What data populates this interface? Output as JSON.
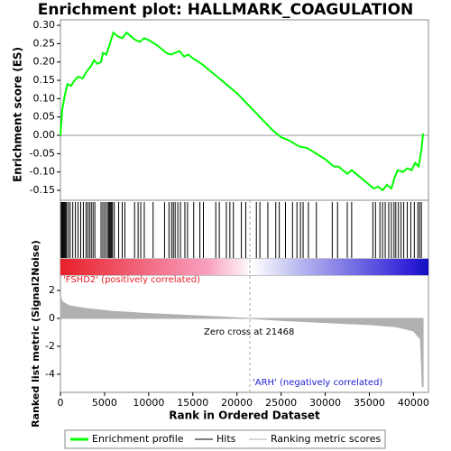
{
  "chart_data": [
    {
      "type": "line",
      "title": "Enrichment plot: HALLMARK_COAGULATION",
      "ylabel": "Enrichment score (ES)",
      "xlim": [
        0,
        41700
      ],
      "ylim": [
        -0.177,
        0.315
      ],
      "yticks": [
        {
          "value": 0.3,
          "label": "0.30"
        },
        {
          "value": 0.25,
          "label": "0.25"
        },
        {
          "value": 0.2,
          "label": "0.20"
        },
        {
          "value": 0.15,
          "label": "0.15"
        },
        {
          "value": 0.1,
          "label": "0.10"
        },
        {
          "value": 0.05,
          "label": "0.05"
        },
        {
          "value": 0,
          "label": "0.00"
        },
        {
          "value": -0.05,
          "label": "-0.05"
        },
        {
          "value": -0.1,
          "label": "-0.10"
        },
        {
          "value": -0.15,
          "label": "-0.15"
        }
      ],
      "x": [
        0,
        200,
        500,
        800,
        1200,
        1600,
        2000,
        2500,
        3000,
        3500,
        3800,
        4200,
        4600,
        4800,
        5200,
        5600,
        6000,
        6500,
        7000,
        7500,
        8000,
        8500,
        9000,
        9500,
        10000,
        11000,
        12000,
        12500,
        13000,
        13500,
        14000,
        14500,
        15000,
        16000,
        17000,
        18000,
        19000,
        20000,
        21000,
        22000,
        23000,
        24000,
        25000,
        26000,
        27000,
        28000,
        29000,
        30000,
        31000,
        31500,
        32500,
        33000,
        34000,
        35000,
        35500,
        36000,
        36500,
        37000,
        37500,
        37800,
        38200,
        38800,
        39300,
        39800,
        40200,
        40600,
        40900,
        41100
      ],
      "series": [
        {
          "name": "Enrichment profile",
          "color": "#00ff00",
          "values": [
            0,
            0.07,
            0.11,
            0.14,
            0.135,
            0.15,
            0.16,
            0.155,
            0.175,
            0.19,
            0.205,
            0.195,
            0.2,
            0.225,
            0.22,
            0.25,
            0.28,
            0.27,
            0.265,
            0.28,
            0.27,
            0.26,
            0.255,
            0.265,
            0.26,
            0.245,
            0.225,
            0.22,
            0.225,
            0.23,
            0.215,
            0.22,
            0.21,
            0.195,
            0.175,
            0.155,
            0.135,
            0.115,
            0.09,
            0.065,
            0.04,
            0.015,
            -0.005,
            -0.015,
            -0.03,
            -0.035,
            -0.05,
            -0.065,
            -0.085,
            -0.085,
            -0.105,
            -0.095,
            -0.115,
            -0.135,
            -0.145,
            -0.14,
            -0.15,
            -0.135,
            -0.145,
            -0.12,
            -0.095,
            -0.1,
            -0.09,
            -0.095,
            -0.075,
            -0.085,
            -0.04,
            0.005
          ]
        }
      ]
    },
    {
      "type": "rug",
      "xlim": [
        0,
        41700
      ],
      "zero_cross": 21468,
      "series": [
        {
          "name": "Hits",
          "color": "#000000",
          "x": [
            100,
            200,
            300,
            400,
            500,
            600,
            700,
            900,
            1100,
            1400,
            1700,
            2000,
            2300,
            2600,
            2900,
            3100,
            3300,
            3500,
            3700,
            3900,
            4600,
            4800,
            5000,
            5200,
            5400,
            5500,
            5600,
            5700,
            5800,
            5900,
            6100,
            6600,
            7000,
            7300,
            8400,
            8800,
            9100,
            9500,
            10500,
            11800,
            12300,
            12600,
            12800,
            13000,
            13300,
            13600,
            14100,
            14400,
            15100,
            15800,
            16200,
            17600,
            18000,
            18800,
            19200,
            19600,
            20500,
            21000,
            22200,
            22600,
            23500,
            24400,
            24800,
            25500,
            26300,
            26800,
            27200,
            27500,
            28100,
            29000,
            30800,
            31400,
            32500,
            33000,
            35400,
            35700,
            36200,
            36500,
            36800,
            37200,
            37500,
            37800,
            38000,
            38300,
            38600,
            38900,
            39300,
            39700,
            40100,
            40500,
            40700,
            40900
          ]
        }
      ]
    },
    {
      "type": "area",
      "xlabel": "Rank in Ordered Dataset",
      "ylabel": "Ranked list metric (Signal2Noise)",
      "xlim": [
        0,
        41700
      ],
      "xticks": [
        0,
        5000,
        10000,
        15000,
        20000,
        25000,
        30000,
        35000,
        40000
      ],
      "ylim": [
        -5.3,
        3.1
      ],
      "yticks": [
        2,
        0,
        -2,
        -4
      ],
      "annotations": [
        "'FSHD2' (positively correlated)",
        "Zero cross at 21468",
        "'ARH' (negatively correlated)"
      ],
      "x": [
        0,
        200,
        1000,
        3000,
        6000,
        10000,
        15000,
        21468,
        25000,
        30000,
        35000,
        38000,
        40000,
        40800,
        41000,
        41100
      ],
      "series": [
        {
          "name": "Ranking metric scores",
          "color": "#b0b0b0",
          "values": [
            1.6,
            1.2,
            0.9,
            0.7,
            0.5,
            0.35,
            0.2,
            0,
            -0.15,
            -0.3,
            -0.45,
            -0.6,
            -0.9,
            -1.5,
            -4.9,
            -4.9
          ]
        }
      ]
    }
  ]
}
